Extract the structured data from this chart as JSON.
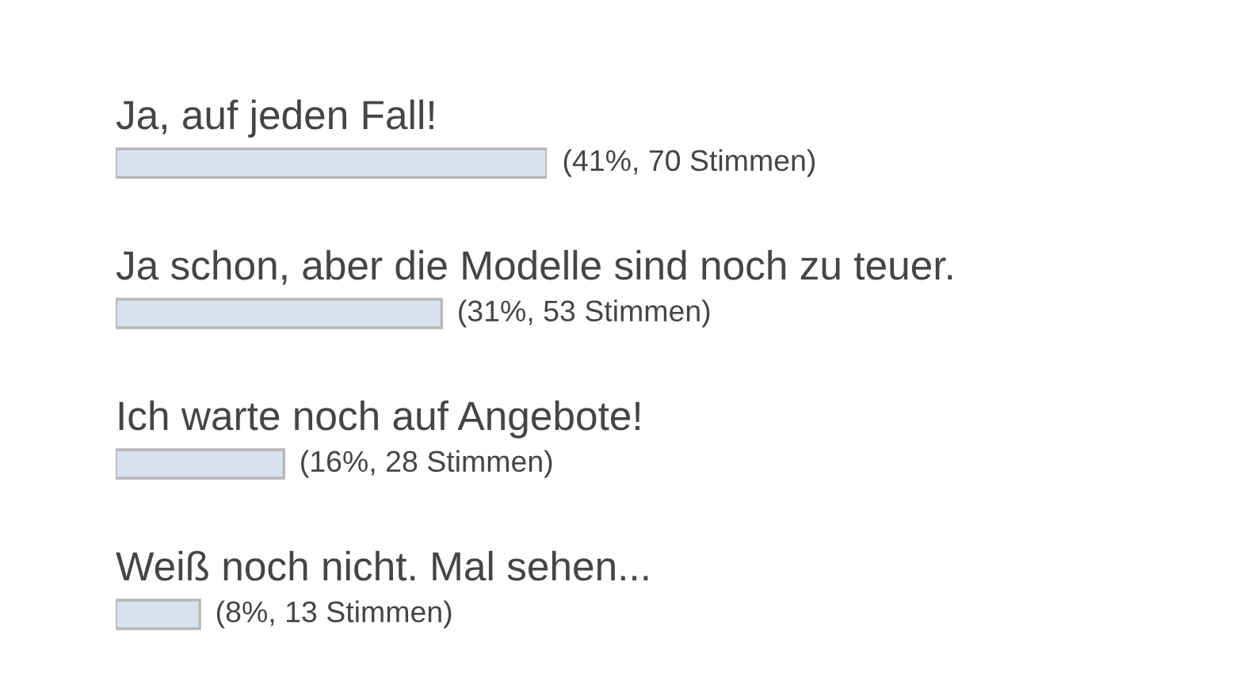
{
  "chart_data": {
    "type": "bar",
    "orientation": "horizontal",
    "categories": [
      "Ja, auf jeden Fall!",
      "Ja schon, aber die Modelle sind noch zu teuer.",
      "Ich warte noch auf Angebote!",
      "Weiß noch nicht. Mal sehen..."
    ],
    "values": [
      41,
      31,
      16,
      8
    ],
    "value_labels": [
      "(41%, 70 Stimmen)",
      "(31%, 53 Stimmen)",
      "(16%, 28 Stimmen)",
      "(8%, 13 Stimmen)"
    ],
    "color": "#d8e1ec",
    "tick_labels": "y"
  }
}
